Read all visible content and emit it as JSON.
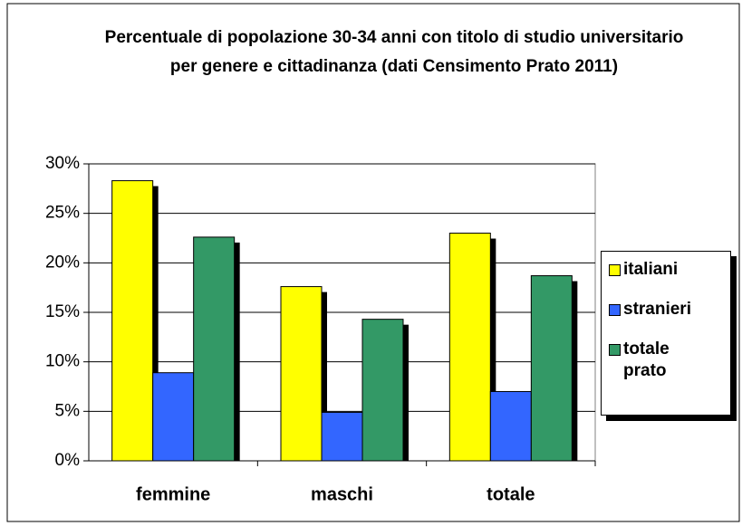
{
  "chart_data": {
    "type": "bar",
    "title": "Percentuale di popolazione 30-34 anni con titolo di studio universitario per genere e cittadinanza (dati Censimento Prato 2011)",
    "categories": [
      "femmine",
      "maschi",
      "totale"
    ],
    "series": [
      {
        "name": "italiani",
        "color": "#ffff00",
        "values": [
          28.3,
          17.6,
          23.0
        ]
      },
      {
        "name": "stranieri",
        "color": "#3366ff",
        "values": [
          8.9,
          4.9,
          7.0
        ]
      },
      {
        "name": "totale prato",
        "color": "#339966",
        "values": [
          22.6,
          14.3,
          18.7
        ]
      }
    ],
    "ylim": [
      0,
      30
    ],
    "yticks": [
      {
        "value": 0,
        "label": "0%"
      },
      {
        "value": 5,
        "label": "5%"
      },
      {
        "value": 10,
        "label": "10%"
      },
      {
        "value": 15,
        "label": "15%"
      },
      {
        "value": 20,
        "label": "20%"
      },
      {
        "value": 25,
        "label": "25%"
      },
      {
        "value": 30,
        "label": "30%"
      }
    ],
    "grid": true,
    "legend": "right"
  }
}
